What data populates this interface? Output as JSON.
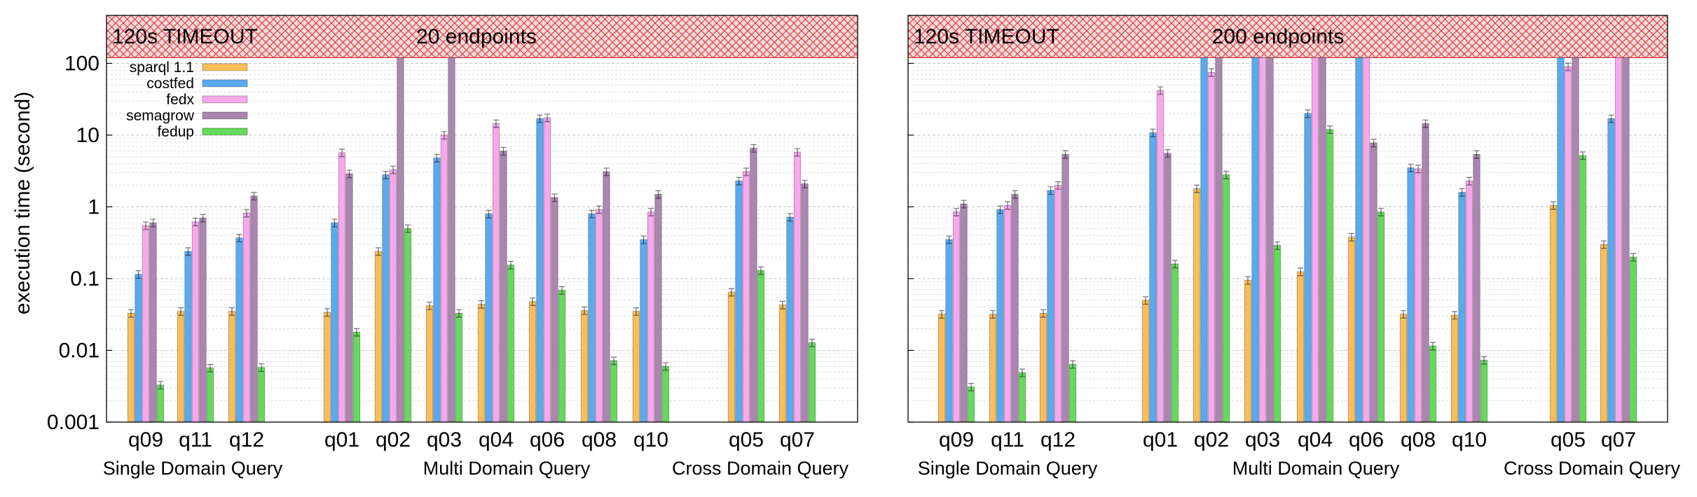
{
  "chart_data": {
    "type": "bar",
    "ylabel": "execution time (second)",
    "yscale": "log",
    "ylim": [
      0.001,
      120
    ],
    "yticks": [
      "0.001",
      "0.01",
      "0.1",
      "1",
      "10",
      "100"
    ],
    "grid": true,
    "legend_position": "top-left",
    "timeout_label": "120s TIMEOUT",
    "timeout_value": 120,
    "series": [
      {
        "name": "sparql 1.1",
        "color": "#f9be5a"
      },
      {
        "name": "costfed",
        "color": "#5aaaf0"
      },
      {
        "name": "fedx",
        "color": "#f7a8ec"
      },
      {
        "name": "semagrow",
        "color": "#aa86b1"
      },
      {
        "name": "fedup",
        "color": "#66d95d"
      }
    ],
    "groups": [
      {
        "name": "Single Domain Query",
        "queries": [
          "q09",
          "q11",
          "q12"
        ]
      },
      {
        "name": "Multi Domain Query",
        "queries": [
          "q01",
          "q02",
          "q03",
          "q04",
          "q06",
          "q08",
          "q10"
        ]
      },
      {
        "name": "Cross Domain Query",
        "queries": [
          "q05",
          "q07"
        ]
      }
    ],
    "panels": [
      {
        "title": "20 endpoints",
        "values": {
          "q09": [
            0.033,
            0.115,
            0.55,
            0.6,
            0.0033
          ],
          "q11": [
            0.035,
            0.24,
            0.62,
            0.7,
            0.0057
          ],
          "q12": [
            0.035,
            0.37,
            0.82,
            1.42,
            0.0058
          ],
          "q01": [
            0.034,
            0.6,
            5.7,
            2.9,
            0.018
          ],
          "q02": [
            0.24,
            2.8,
            3.3,
            120,
            0.5
          ],
          "q03": [
            0.042,
            4.8,
            10,
            120,
            0.033
          ],
          "q04": [
            0.044,
            0.8,
            14.5,
            6,
            0.155
          ],
          "q06": [
            0.048,
            17,
            17.5,
            1.35,
            0.069
          ],
          "q08": [
            0.036,
            0.8,
            0.92,
            3.1,
            0.0072
          ],
          "q10": [
            0.035,
            0.35,
            0.85,
            1.5,
            0.006
          ],
          "q05": [
            0.065,
            2.3,
            3.1,
            6.6,
            0.13
          ],
          "q07": [
            0.043,
            0.72,
            5.8,
            2.1,
            0.0128
          ]
        }
      },
      {
        "title": "200 endpoints",
        "values": {
          "q09": [
            0.032,
            0.35,
            0.85,
            1.1,
            0.0031
          ],
          "q11": [
            0.032,
            0.92,
            1.05,
            1.5,
            0.0049
          ],
          "q12": [
            0.033,
            1.7,
            2.0,
            5.4,
            0.0064
          ],
          "q01": [
            0.05,
            10.8,
            42,
            5.6,
            0.16
          ],
          "q02": [
            1.8,
            120,
            75,
            120,
            2.8
          ],
          "q03": [
            0.095,
            120,
            120,
            120,
            0.29
          ],
          "q04": [
            0.125,
            20,
            120,
            120,
            12
          ],
          "q06": [
            0.38,
            120,
            120,
            7.8,
            0.85
          ],
          "q08": [
            0.032,
            3.5,
            3.4,
            14.5,
            0.0115
          ],
          "q10": [
            0.031,
            1.6,
            2.3,
            5.4,
            0.0073
          ],
          "q05": [
            1.05,
            120,
            90,
            120,
            5.2
          ],
          "q07": [
            0.3,
            17,
            120,
            120,
            0.2
          ]
        }
      }
    ]
  }
}
